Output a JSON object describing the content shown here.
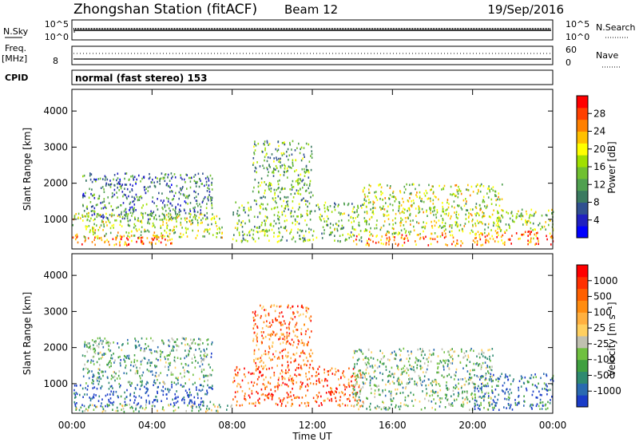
{
  "header": {
    "station_title": "Zhongshan Station (fitACF)",
    "beam_label": "Beam 12",
    "date_label": "19/Sep/2016"
  },
  "noise_panel": {
    "left_label": "N.Sky",
    "right_label": "N.Search",
    "left_ticks": [
      "10^5",
      "10^0"
    ],
    "right_ticks": [
      "10^5",
      "10^0"
    ]
  },
  "freq_panel": {
    "left_label_top": "Freq.",
    "left_label_unit": "[MHz]",
    "left_tick": "8",
    "right_label": "Nave",
    "right_ticks": [
      "60",
      "0"
    ]
  },
  "cpid": {
    "label": "CPID",
    "text": "normal (fast stereo) 153"
  },
  "chart_data": [
    {
      "type": "heatmap",
      "title": "",
      "ylabel": "Slant Range [km]",
      "ylim": [
        180,
        4600
      ],
      "y_ticks": [
        "1000",
        "2000",
        "3000",
        "4000"
      ],
      "x_ticks": [
        "00:00",
        "04:00",
        "08:00",
        "12:00",
        "16:00",
        "20:00",
        "00:00"
      ],
      "colorbar": {
        "label": "Power [dB]",
        "ticks": [
          "4",
          "8",
          "12",
          "16",
          "20",
          "24",
          "28"
        ],
        "colors": [
          "#0000ff",
          "#2020c0",
          "#305090",
          "#3a7a60",
          "#50a050",
          "#70c030",
          "#a0e000",
          "#ffff00",
          "#ffc000",
          "#ff8000",
          "#ff4000",
          "#ff0000"
        ]
      },
      "scatter_regions": [
        {
          "t0": 0.0,
          "t1": 5.0,
          "r0": 300,
          "r1": 600,
          "level": 0.85
        },
        {
          "t0": 0.0,
          "t1": 7.5,
          "r0": 500,
          "r1": 1200,
          "level": 0.55
        },
        {
          "t0": 0.5,
          "t1": 7.0,
          "r0": 1000,
          "r1": 2300,
          "level": 0.3
        },
        {
          "t0": 8.0,
          "t1": 14.5,
          "r0": 400,
          "r1": 1500,
          "level": 0.45
        },
        {
          "t0": 9.0,
          "t1": 12.0,
          "r0": 1500,
          "r1": 3200,
          "level": 0.4
        },
        {
          "t0": 14.0,
          "t1": 19.5,
          "r0": 300,
          "r1": 600,
          "level": 0.8
        },
        {
          "t0": 14.5,
          "t1": 21.5,
          "r0": 600,
          "r1": 2000,
          "level": 0.55
        },
        {
          "t0": 20.0,
          "t1": 24.0,
          "r0": 300,
          "r1": 700,
          "level": 0.8
        },
        {
          "t0": 21.0,
          "t1": 24.0,
          "r0": 700,
          "r1": 1300,
          "level": 0.5
        }
      ]
    },
    {
      "type": "heatmap",
      "title": "",
      "ylabel": "Slant Range [km]",
      "xlabel": "Time UT",
      "ylim": [
        180,
        4600
      ],
      "y_ticks": [
        "1000",
        "2000",
        "3000",
        "4000"
      ],
      "x_ticks": [
        "00:00",
        "04:00",
        "08:00",
        "12:00",
        "16:00",
        "20:00",
        "00:00"
      ],
      "colorbar": {
        "label": "Velocity [m s⁻¹]",
        "ticks": [
          "1000",
          "500",
          "100",
          "25",
          "-25",
          "-100",
          "-500",
          "-1000"
        ],
        "colors": [
          "#1a3cc8",
          "#2a6ab0",
          "#2f8a70",
          "#40a040",
          "#70c040",
          "#c0c0b0",
          "#ffd060",
          "#ffb040",
          "#ff8c10",
          "#ff6000",
          "#ff3000",
          "#ff0000"
        ]
      },
      "scatter_regions": [
        {
          "t0": 0.0,
          "t1": 7.0,
          "r0": 400,
          "r1": 1000,
          "level": 0.05
        },
        {
          "t0": 0.0,
          "t1": 8.0,
          "r0": 250,
          "r1": 450,
          "level": 0.4
        },
        {
          "t0": 0.5,
          "t1": 7.0,
          "r0": 1000,
          "r1": 2300,
          "level": 0.3
        },
        {
          "t0": 8.0,
          "t1": 14.5,
          "r0": 400,
          "r1": 1500,
          "level": 0.8
        },
        {
          "t0": 9.0,
          "t1": 12.0,
          "r0": 1500,
          "r1": 3200,
          "level": 0.75
        },
        {
          "t0": 14.0,
          "t1": 21.0,
          "r0": 300,
          "r1": 2000,
          "level": 0.35
        },
        {
          "t0": 20.0,
          "t1": 24.0,
          "r0": 300,
          "r1": 1300,
          "level": 0.15
        }
      ]
    }
  ]
}
